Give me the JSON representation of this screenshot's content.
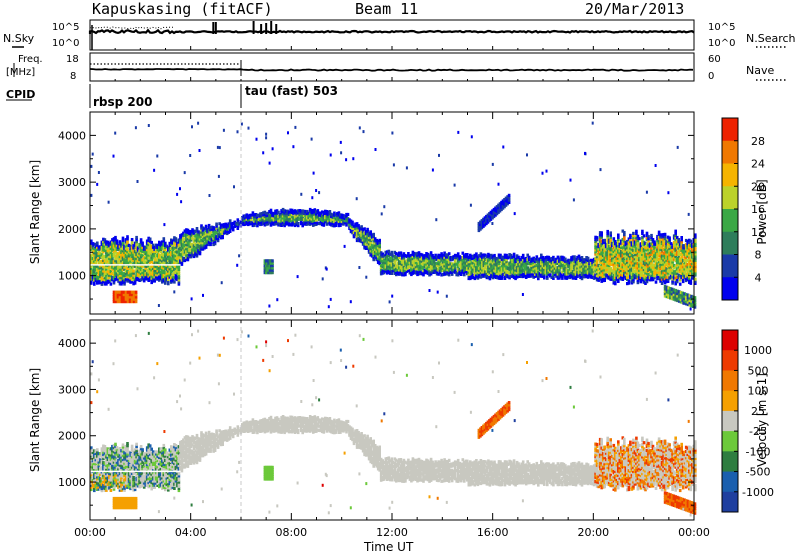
{
  "header": {
    "station": "Kapuskasing (fitACF)",
    "beam": "Beam 11",
    "date": "20/Mar/2013"
  },
  "summary": {
    "nsky_label": "N.Sky",
    "nsky_ticks": [
      "10^5",
      "10^0"
    ],
    "nsearch_label": "N.Search",
    "nsearch_ticks": [
      "10^5",
      "10^0"
    ],
    "freq_label": "Freq.",
    "freq_unit": "[MHz]",
    "freq_ticks": [
      "18",
      "8"
    ],
    "nave_label": "Nave",
    "nave_ticks": [
      "60",
      "0"
    ],
    "cpid_label": "CPID",
    "cpid_segments": [
      {
        "label": "rbsp 200",
        "start_hour": 0
      },
      {
        "label": "tau (fast) 503",
        "start_hour": 6
      }
    ]
  },
  "colors": {
    "power_scale": [
      "#0000ee",
      "#1a3aa8",
      "#2e7d5b",
      "#3aa845",
      "#bcd22a",
      "#f5b400",
      "#f07800",
      "#ee2200"
    ],
    "velocity_scale": [
      "#1f3f9f",
      "#1a5fae",
      "#2e7d40",
      "#6cc93a",
      "#c8c8c0",
      "#f5a000",
      "#f07800",
      "#ee3a00",
      "#dd0000"
    ]
  },
  "chart_data": [
    {
      "type": "heatmap",
      "name": "power-panel",
      "ylabel": "Slant Range [km]",
      "xlim_hours": [
        0,
        24
      ],
      "ylim": [
        180,
        4500
      ],
      "yticks": [
        1000,
        2000,
        3000,
        4000
      ],
      "colorbar": {
        "label": "Power [dB]",
        "ticks": [
          "28",
          "24",
          "20",
          "16",
          "12",
          "8",
          "4"
        ],
        "range": [
          0,
          30
        ]
      },
      "dominant_echo_bands_km": [
        {
          "start_hour": 0.0,
          "end_hour": 3.5,
          "lower": 900,
          "upper": 1800
        },
        {
          "start_hour": 3.5,
          "end_hour": 6.0,
          "lower": 1700,
          "upper": 2300
        },
        {
          "start_hour": 6.0,
          "end_hour": 11.0,
          "lower": 2100,
          "upper": 2400
        },
        {
          "start_hour": 11.0,
          "end_hour": 20.0,
          "lower": 1000,
          "upper": 1700
        },
        {
          "start_hour": 20.0,
          "end_hour": 24.0,
          "lower": 800,
          "upper": 2000
        }
      ]
    },
    {
      "type": "heatmap",
      "name": "velocity-panel",
      "ylabel": "Slant Range [km]",
      "xlabel": "Time UT",
      "xlim_hours": [
        0,
        24
      ],
      "ylim": [
        180,
        4500
      ],
      "yticks": [
        1000,
        2000,
        3000,
        4000
      ],
      "xticks": [
        "00:00",
        "04:00",
        "08:00",
        "12:00",
        "16:00",
        "20:00",
        "00:00"
      ],
      "colorbar": {
        "label": "Velocity [m s-1]",
        "ticks": [
          "1000",
          "500",
          "100",
          "25",
          "-25",
          "-100",
          "-500",
          "-1000"
        ]
      }
    }
  ]
}
